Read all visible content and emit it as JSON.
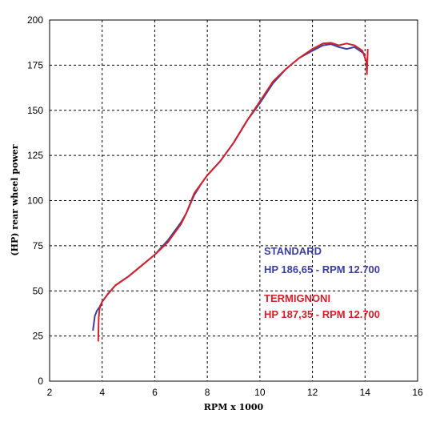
{
  "chart_data": {
    "type": "line",
    "title": "",
    "xlabel": "RPM x 1000",
    "ylabel": "(HP) rear wheel power",
    "xlim": [
      2,
      16
    ],
    "ylim": [
      0,
      200
    ],
    "xticks": [
      2,
      4,
      6,
      8,
      10,
      12,
      14,
      16
    ],
    "yticks": [
      0,
      25,
      50,
      75,
      100,
      125,
      150,
      175,
      200
    ],
    "grid": true,
    "grid_style": "dashed",
    "legend_position": "center-right",
    "series": [
      {
        "name": "STANDARD",
        "summary": "HP 186,65 - RPM 12.700",
        "color": "#3a3fa0",
        "x": [
          3.65,
          3.72,
          3.8,
          3.9,
          4.0,
          4.2,
          4.5,
          5.0,
          5.5,
          6.0,
          6.5,
          7.0,
          7.2,
          7.5,
          7.8,
          8.0,
          8.5,
          9.0,
          9.5,
          10.0,
          10.5,
          11.0,
          11.5,
          12.0,
          12.4,
          12.7,
          13.0,
          13.3,
          13.6,
          13.9,
          14.0
        ],
        "y": [
          28,
          36,
          39,
          41,
          44,
          48,
          53,
          58,
          64,
          70,
          78,
          88,
          93,
          103,
          110,
          114,
          122,
          132,
          144,
          154,
          165,
          173,
          179,
          183,
          186,
          186.65,
          185,
          184,
          185,
          182,
          181
        ]
      },
      {
        "name": "TERMIGNONI",
        "summary": "HP 187,35 - RPM 12.700",
        "color": "#d4202a",
        "x": [
          3.85,
          3.87,
          3.9,
          4.0,
          4.2,
          4.5,
          5.0,
          5.5,
          6.0,
          6.5,
          7.0,
          7.2,
          7.5,
          7.8,
          8.0,
          8.5,
          9.0,
          9.5,
          10.0,
          10.5,
          11.0,
          11.5,
          12.0,
          12.4,
          12.7,
          13.0,
          13.3,
          13.6,
          13.9,
          14.05,
          14.07,
          14.1,
          14.1
        ],
        "y": [
          22,
          35,
          40,
          44,
          48,
          53,
          58,
          64,
          70,
          77,
          87,
          93,
          104,
          110,
          114,
          122,
          132,
          144,
          155,
          166,
          173,
          179,
          184,
          187,
          187.35,
          186,
          187,
          186,
          183,
          177,
          170,
          182,
          184
        ]
      }
    ]
  }
}
